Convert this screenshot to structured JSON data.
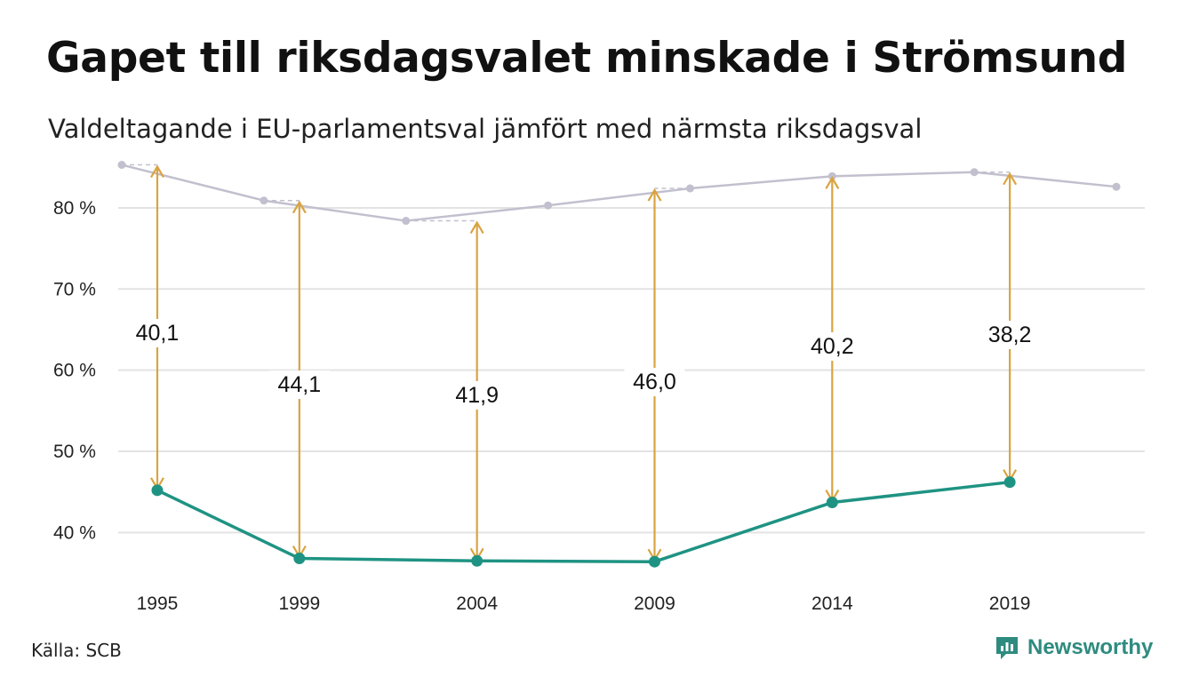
{
  "title": "Gapet till riksdagsvalet minskade i Strömsund",
  "subtitle": "Valdeltagande i EU-parlamentsval jämfört med närmsta riksdagsval",
  "source": "Källa: SCB",
  "brand": "Newsworthy",
  "colors": {
    "eu": "#1f9383",
    "riksdag": "#c2c0ce",
    "gap": "#d9a441",
    "grid": "#e3e3e3",
    "brand": "#2e8b7f"
  },
  "chart_data": {
    "type": "line",
    "ylim": [
      35,
      87
    ],
    "y_ticks": [
      40,
      50,
      60,
      70,
      80
    ],
    "y_tick_labels": [
      "40 %",
      "50 %",
      "60 %",
      "70 %",
      "80 %"
    ],
    "x_range": [
      1994.2,
      2022.8
    ],
    "x_ticks": [
      1995,
      1999,
      2004,
      2009,
      2014,
      2019
    ],
    "x_tick_labels": [
      "1995",
      "1999",
      "2004",
      "2009",
      "2014",
      "2019"
    ],
    "grid": true,
    "series": [
      {
        "key": "riksdag",
        "x": [
          1994,
          1998,
          2002,
          2006,
          2010,
          2014,
          2018,
          2022
        ],
        "values": [
          85.3,
          80.9,
          78.4,
          80.3,
          82.4,
          83.9,
          84.4,
          82.6
        ]
      },
      {
        "key": "eu",
        "x": [
          1995,
          1999,
          2004,
          2009,
          2014,
          2019
        ],
        "values": [
          45.2,
          36.8,
          36.5,
          36.4,
          43.7,
          46.2
        ]
      }
    ],
    "gaps": [
      {
        "x": 1995,
        "eu": 45.2,
        "riksdag": 85.3,
        "label": "40,1"
      },
      {
        "x": 1999,
        "eu": 36.8,
        "riksdag": 80.9,
        "label": "44,1"
      },
      {
        "x": 2004,
        "eu": 36.5,
        "riksdag": 78.4,
        "label": "41,9"
      },
      {
        "x": 2009,
        "eu": 36.4,
        "riksdag": 82.4,
        "label": "46,0"
      },
      {
        "x": 2014,
        "eu": 43.7,
        "riksdag": 83.9,
        "label": "40,2"
      },
      {
        "x": 2019,
        "eu": 46.2,
        "riksdag": 84.4,
        "label": "38,2"
      }
    ]
  }
}
